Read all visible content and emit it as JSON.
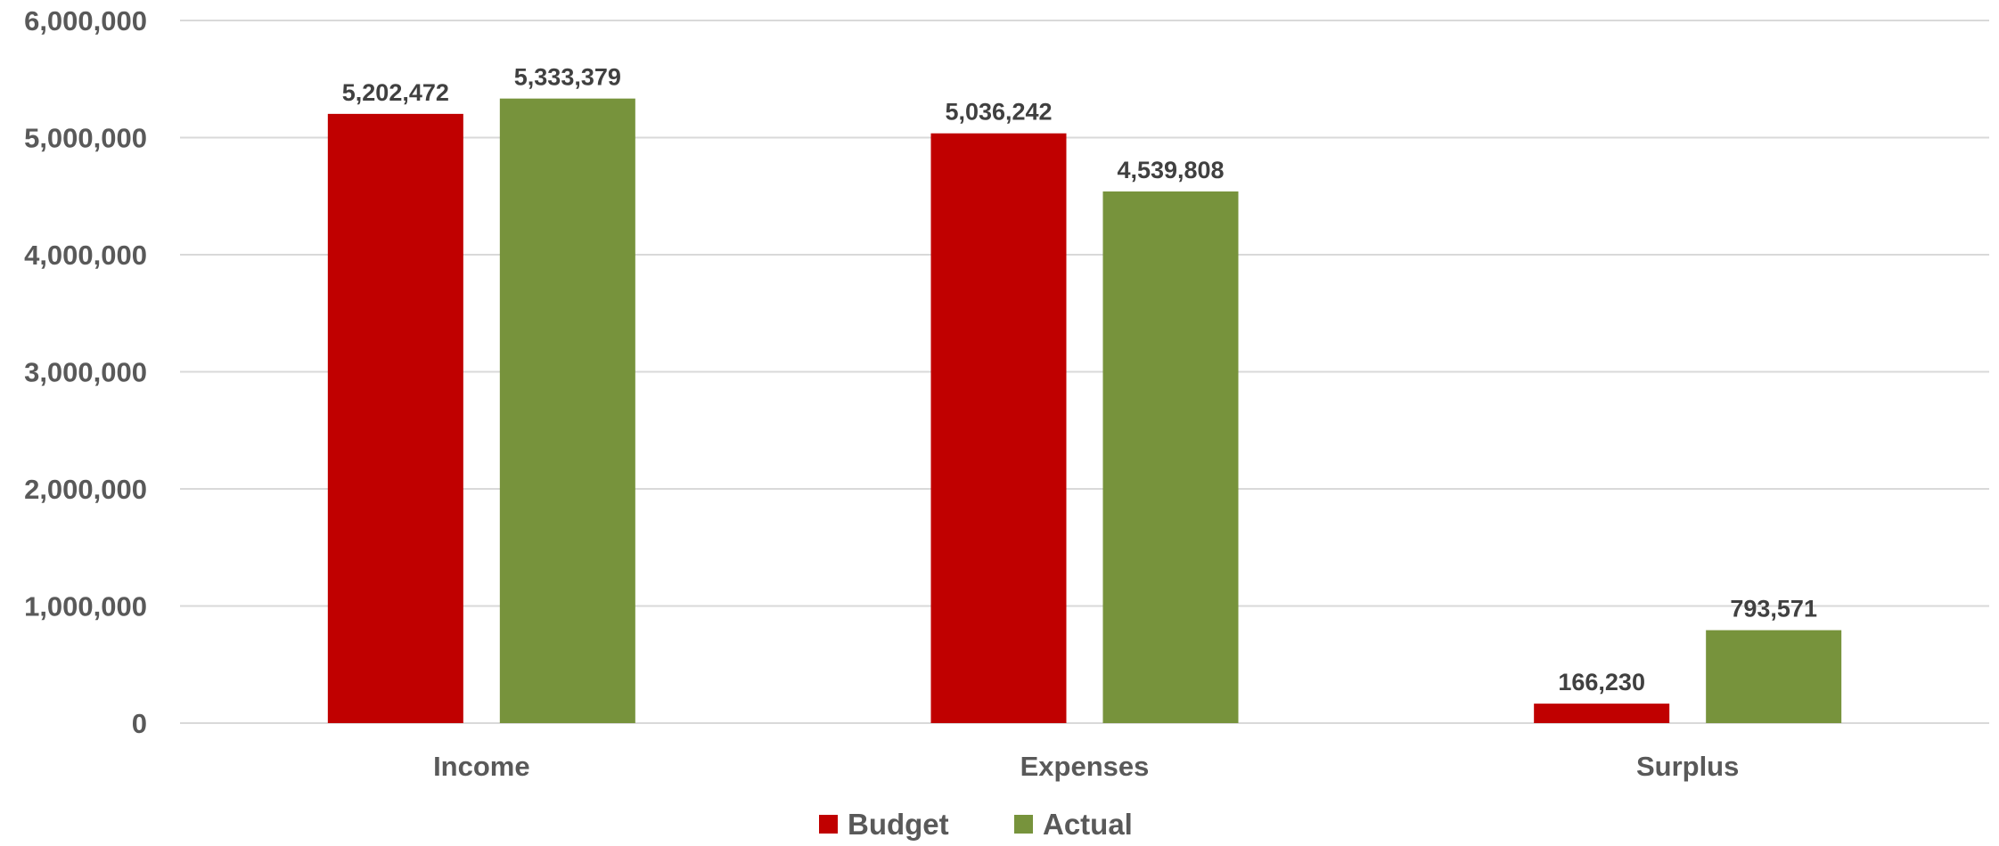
{
  "chart_data": {
    "type": "bar",
    "categories": [
      "Income",
      "Expenses",
      "Surplus"
    ],
    "series": [
      {
        "name": "Budget",
        "color": "#c00000",
        "values": [
          5202472,
          5036242,
          166230
        ],
        "labels": [
          "5,202,472",
          "5,036,242",
          "166,230"
        ]
      },
      {
        "name": "Actual",
        "color": "#77933c",
        "values": [
          5333379,
          4539808,
          793571
        ],
        "labels": [
          "5,333,379",
          "4,539,808",
          "793,571"
        ]
      }
    ],
    "yticks": [
      0,
      1000000,
      2000000,
      3000000,
      4000000,
      5000000,
      6000000
    ],
    "ytick_labels": [
      "0",
      "1,000,000",
      "2,000,000",
      "3,000,000",
      "4,000,000",
      "5,000,000",
      "6,000,000"
    ],
    "ylim": [
      0,
      6000000
    ],
    "grid": true,
    "legend_position": "bottom"
  }
}
